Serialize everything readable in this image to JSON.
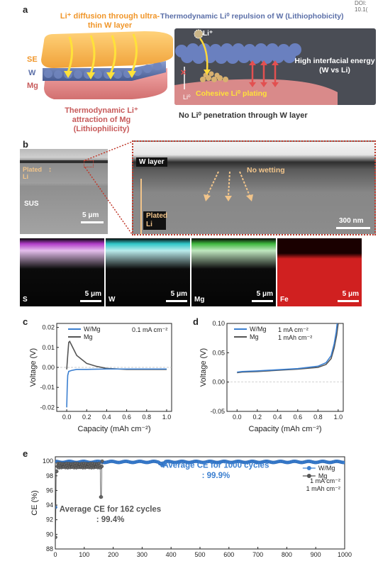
{
  "doi": "DOI: 10.1(",
  "panels": {
    "a": "a",
    "b": "b",
    "c": "c",
    "d": "d",
    "e": "e"
  },
  "panel_a": {
    "li_diffusion": "Li⁺ diffusion through ultra-thin W layer",
    "thermo_repulsion": "Thermodynamic Li⁰ repulsion of W (Lithiophobicity)",
    "layer_se": "SE",
    "layer_w": "W",
    "layer_mg": "Mg",
    "thermo_attraction": "Thermodynamic Li⁺ attraction of Mg (Lithiophilicity)",
    "li_ion": "Li⁺",
    "li0": "Li⁰",
    "x_mark": "✕",
    "high_energy": "High interfacial energy (W vs Li)",
    "cohesive": "Cohesive Li⁰ plating",
    "no_penetration": "No Li⁰ penetration through W layer"
  },
  "panel_b": {
    "plated_li": "Plated Li",
    "sus": "SUS",
    "scale_5um": "5 μm",
    "w_layer": "W layer",
    "no_wetting": "No wetting",
    "plated_li_zoom": "Plated Li",
    "scale_300nm": "300 nm",
    "maps": [
      {
        "element": "S",
        "scale": "5 μm",
        "color": "#b03cc8"
      },
      {
        "element": "W",
        "scale": "5 μm",
        "color": "#2fc6c8"
      },
      {
        "element": "Mg",
        "scale": "5 μm",
        "color": "#3fb83f"
      },
      {
        "element": "Fe",
        "scale": "5 μm",
        "color": "#d02020"
      }
    ]
  },
  "chart_data": [
    {
      "id": "c",
      "type": "line",
      "xlabel": "Capacity (mAh cm⁻²)",
      "ylabel": "Voltage (V)",
      "xlim": [
        -0.1,
        1.05
      ],
      "ylim": [
        -0.022,
        0.022
      ],
      "xticks": [
        "0.0",
        "0.2",
        "0.4",
        "0.6",
        "0.8",
        "1.0"
      ],
      "yticks": [
        "0.02",
        "0.01",
        "0.00",
        "-0.01",
        "-0.02"
      ],
      "annotation": "0.1 mA cm⁻²",
      "series": [
        {
          "name": "W/Mg",
          "color": "#3b7fd0",
          "x": [
            0,
            0.005,
            0.01,
            0.02,
            0.05,
            0.1,
            0.2,
            0.4,
            0.6,
            0.8,
            1.0
          ],
          "y": [
            -0.02,
            -0.01,
            -0.004,
            -0.002,
            -0.0015,
            -0.001,
            -0.001,
            -0.0008,
            -0.0008,
            -0.0008,
            -0.0008
          ]
        },
        {
          "name": "Mg",
          "color": "#555555",
          "x": [
            0,
            0.01,
            0.02,
            0.03,
            0.05,
            0.1,
            0.2,
            0.3,
            0.4,
            0.6,
            0.8,
            1.0
          ],
          "y": [
            -0.001,
            0.006,
            0.0125,
            0.013,
            0.011,
            0.006,
            0.002,
            0.0005,
            -0.0005,
            -0.001,
            -0.001,
            -0.001
          ]
        }
      ]
    },
    {
      "id": "d",
      "type": "line",
      "xlabel": "Capacity (mAh cm⁻²)",
      "ylabel": "Voltage (V)",
      "xlim": [
        -0.1,
        1.05
      ],
      "ylim": [
        -0.05,
        0.1
      ],
      "xticks": [
        "0.0",
        "0.2",
        "0.4",
        "0.6",
        "0.8",
        "1.0"
      ],
      "yticks": [
        "0.10",
        "0.05",
        "0.00",
        "-0.05"
      ],
      "annotation": "1 mA cm⁻²\n1 mAh cm⁻²",
      "series": [
        {
          "name": "W/Mg",
          "color": "#3b7fd0",
          "x": [
            0,
            0.05,
            0.2,
            0.4,
            0.6,
            0.8,
            0.88,
            0.93,
            0.96,
            0.98,
            0.99
          ],
          "y": [
            0.017,
            0.018,
            0.019,
            0.021,
            0.023,
            0.027,
            0.033,
            0.045,
            0.065,
            0.085,
            0.1
          ]
        },
        {
          "name": "Mg",
          "color": "#555555",
          "x": [
            0,
            0.05,
            0.2,
            0.4,
            0.6,
            0.8,
            0.88,
            0.93,
            0.96,
            0.985,
            1.0
          ],
          "y": [
            0.016,
            0.017,
            0.018,
            0.02,
            0.022,
            0.025,
            0.03,
            0.04,
            0.058,
            0.08,
            0.1
          ]
        }
      ]
    },
    {
      "id": "e",
      "type": "scatter",
      "xlabel": "",
      "ylabel": "CE (%)",
      "xlim": [
        0,
        1000
      ],
      "ylim": [
        88,
        100.6
      ],
      "xticks": [
        "0",
        "100",
        "200",
        "300",
        "400",
        "500",
        "600",
        "700",
        "800",
        "900",
        "1000"
      ],
      "yticks": [
        "100",
        "98",
        "96",
        "94",
        "92",
        "90",
        "88"
      ],
      "annotation_w": "Average CE for 1000 cycles : 99.9%",
      "annotation_mg": "Average CE for 162 cycles : 99.4%",
      "conditions": "1 mA cm⁻²\n1 mAh cm⁻²",
      "series": [
        {
          "name": "W/Mg",
          "color": "#3b7fd0",
          "first_cycle": 93.7,
          "steady": 99.9,
          "cycles": 1000
        },
        {
          "name": "Mg",
          "color": "#555555",
          "first_cycle": 89.6,
          "steady": 99.4,
          "cycles": 162,
          "drop_value": 95.1
        }
      ]
    }
  ]
}
